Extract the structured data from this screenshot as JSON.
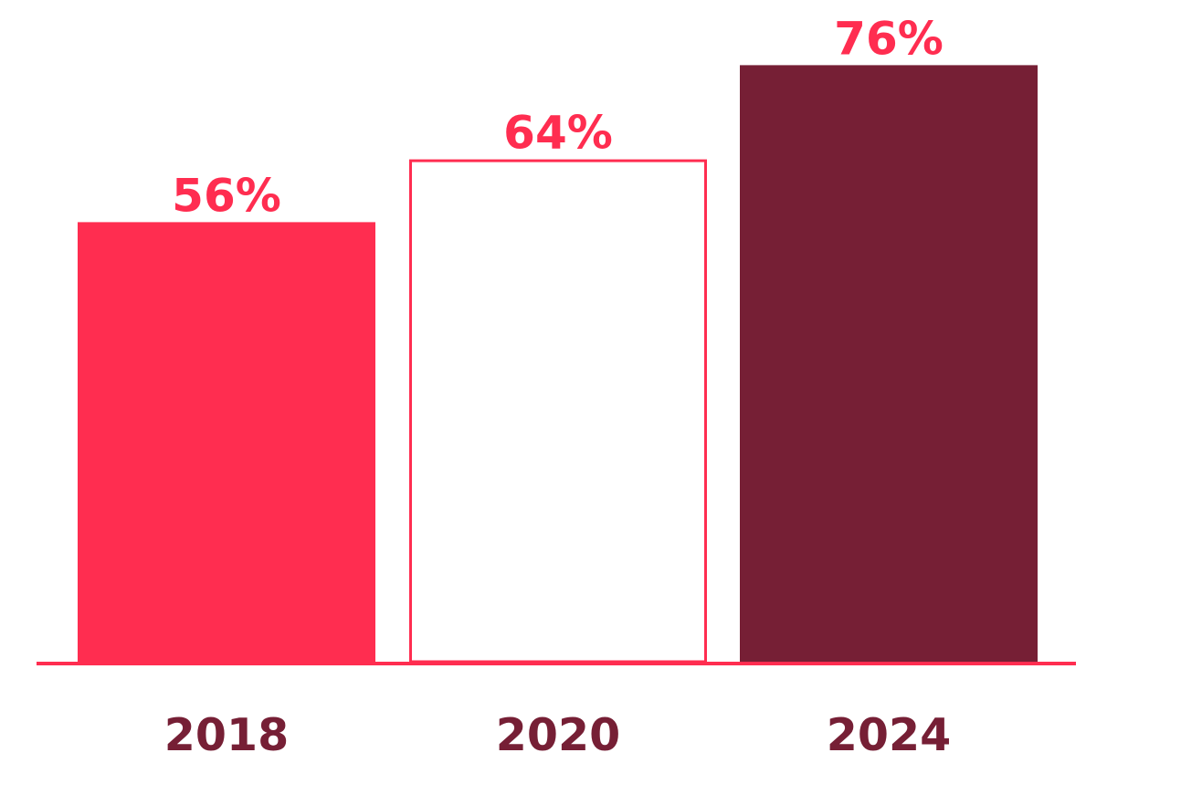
{
  "chart_data": {
    "type": "bar",
    "categories": [
      "2018",
      "2020",
      "2024"
    ],
    "values": [
      56,
      64,
      76
    ],
    "value_labels": [
      "56%",
      "64%",
      "76%"
    ],
    "title": "",
    "xlabel": "",
    "ylabel": "",
    "ylim": [
      0,
      100
    ],
    "grid": false,
    "legend": "none",
    "bar_styles": [
      "filled",
      "outline",
      "filled"
    ],
    "bar_colors": [
      "#ff2d50",
      "#ff2d50",
      "#761f35"
    ],
    "colors": {
      "label_value": "#ff2d50",
      "label_category": "#761f35",
      "baseline": "#ff2d50",
      "background": "#ffffff"
    }
  }
}
